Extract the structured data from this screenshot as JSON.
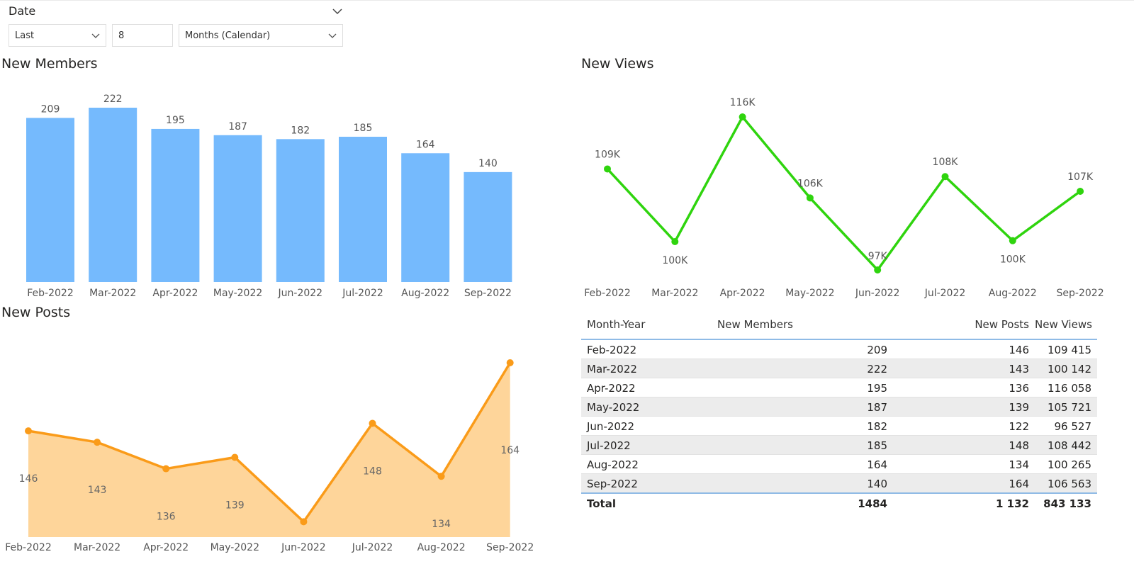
{
  "slicer": {
    "title": "Date",
    "operator": "Last",
    "count": "8",
    "unit": "Months (Calendar)"
  },
  "colors": {
    "bar": "#75bafd",
    "line_green": "#2fd40e",
    "area_line": "#fa9b19",
    "area_fill": "#fed59a",
    "table_accent": "#8fbbe6"
  },
  "members_title": "New Members",
  "views_title": "New Views",
  "posts_title": "New Posts",
  "chart_data": [
    {
      "type": "bar",
      "title": "New Members",
      "categories": [
        "Feb-2022",
        "Mar-2022",
        "Apr-2022",
        "May-2022",
        "Jun-2022",
        "Jul-2022",
        "Aug-2022",
        "Sep-2022"
      ],
      "values": [
        209,
        222,
        195,
        187,
        182,
        185,
        164,
        140
      ],
      "data_labels": [
        "209",
        "222",
        "195",
        "187",
        "182",
        "185",
        "164",
        "140"
      ],
      "ylim": [
        0,
        222
      ],
      "grid": false
    },
    {
      "type": "line",
      "title": "New Views",
      "categories": [
        "Feb-2022",
        "Mar-2022",
        "Apr-2022",
        "May-2022",
        "Jun-2022",
        "Jul-2022",
        "Aug-2022",
        "Sep-2022"
      ],
      "values": [
        109415,
        100142,
        116058,
        105721,
        96527,
        108442,
        100265,
        106563
      ],
      "data_labels": [
        "109K",
        "100K",
        "116K",
        "106K",
        "97K",
        "108K",
        "100K",
        "107K"
      ],
      "ylim": [
        96527,
        116058
      ],
      "grid": false
    },
    {
      "type": "area",
      "title": "New Posts",
      "categories": [
        "Feb-2022",
        "Mar-2022",
        "Apr-2022",
        "May-2022",
        "Jun-2022",
        "Jul-2022",
        "Aug-2022",
        "Sep-2022"
      ],
      "values": [
        146,
        143,
        136,
        139,
        122,
        148,
        134,
        164
      ],
      "data_labels": [
        "146",
        "143",
        "136",
        "139",
        "",
        "148",
        "134",
        "164"
      ],
      "ylim": [
        120,
        164
      ],
      "grid": false
    }
  ],
  "table": {
    "headers": [
      "Month-Year",
      "New Members",
      "New Posts",
      "New Views"
    ],
    "rows": [
      [
        "Feb-2022",
        "209",
        "146",
        "109 415"
      ],
      [
        "Mar-2022",
        "222",
        "143",
        "100 142"
      ],
      [
        "Apr-2022",
        "195",
        "136",
        "116 058"
      ],
      [
        "May-2022",
        "187",
        "139",
        "105 721"
      ],
      [
        "Jun-2022",
        "182",
        "122",
        "96 527"
      ],
      [
        "Jul-2022",
        "185",
        "148",
        "108 442"
      ],
      [
        "Aug-2022",
        "164",
        "134",
        "100 265"
      ],
      [
        "Sep-2022",
        "140",
        "164",
        "106 563"
      ]
    ],
    "total": [
      "Total",
      "1484",
      "1 132",
      "843 133"
    ]
  }
}
